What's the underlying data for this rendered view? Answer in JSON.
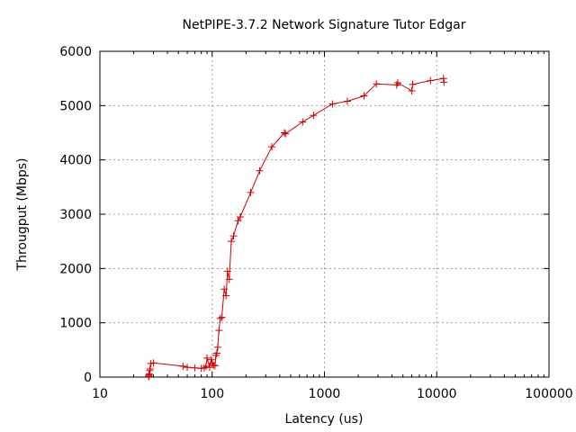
{
  "chart_data": {
    "type": "line",
    "title": "NetPIPE-3.7.2 Network Signature Tutor Edgar",
    "xlabel": "Latency (us)",
    "ylabel": "Througput (Mbps)",
    "xscale": "log",
    "xlim": [
      10,
      100000
    ],
    "ylim": [
      0,
      6000
    ],
    "x_ticks": [
      10,
      100,
      1000,
      10000,
      100000
    ],
    "x_tick_labels": [
      "10",
      "100",
      "1000",
      "10000",
      "100000"
    ],
    "y_ticks": [
      0,
      1000,
      2000,
      3000,
      4000,
      5000,
      6000
    ],
    "y_tick_labels": [
      "0",
      "1000",
      "2000",
      "3000",
      "4000",
      "5000",
      "6000"
    ],
    "grid": true,
    "legend": "none",
    "color": "#d00000",
    "marker": "plus",
    "series": [
      {
        "x": [
          27.2,
          27.3,
          27.4,
          27.5,
          27.8,
          28.0,
          28.5,
          30.0,
          55,
          60,
          70,
          80,
          85,
          88,
          90,
          95,
          98,
          100,
          103,
          106,
          108,
          110,
          112,
          115,
          118,
          122,
          128,
          133,
          137,
          142,
          148,
          155,
          170,
          178,
          220,
          265,
          340,
          440,
          450,
          640,
          800,
          1180,
          1600,
          2250,
          2900,
          4400,
          4500,
          6000,
          6100,
          8800,
          11500,
          11600
        ],
        "y": [
          10,
          20,
          40,
          60,
          120,
          150,
          250,
          260,
          200,
          180,
          170,
          160,
          170,
          200,
          350,
          180,
          320,
          260,
          220,
          210,
          400,
          440,
          550,
          860,
          1080,
          1100,
          1620,
          1500,
          1950,
          1800,
          2500,
          2600,
          2880,
          2950,
          3400,
          3800,
          4240,
          4500,
          4480,
          4700,
          4820,
          5030,
          5080,
          5180,
          5400,
          5380,
          5420,
          5270,
          5390,
          5460,
          5500,
          5430
        ]
      }
    ]
  }
}
